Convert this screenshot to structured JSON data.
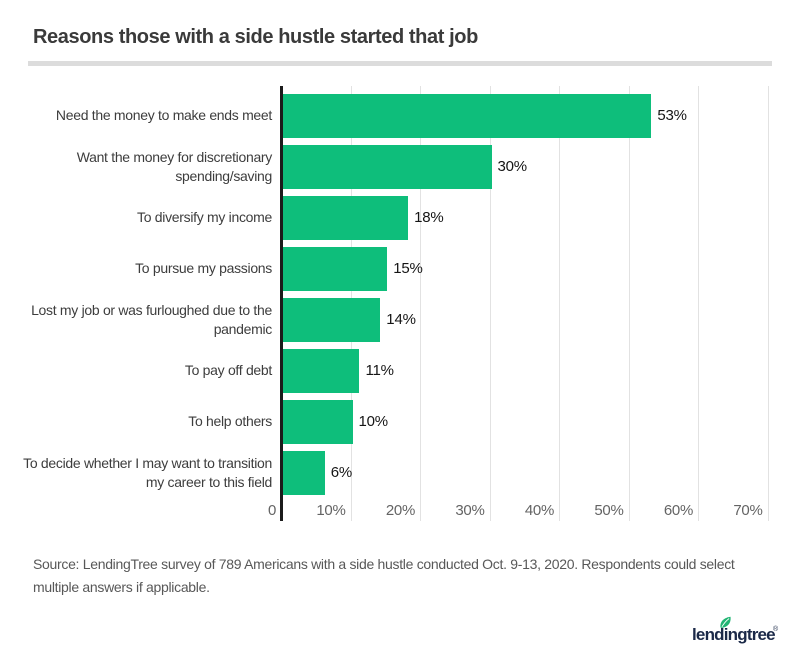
{
  "title": "Reasons those with a side hustle started that job",
  "chart_data": {
    "type": "bar",
    "orientation": "horizontal",
    "title": "Reasons those with a side hustle started that job",
    "categories": [
      "Need the money to make ends meet",
      "Want the money for discretionary spending/saving",
      "To diversify my income",
      "To pursue my passions",
      "Lost my job or was furloughed due to the pandemic",
      "To pay off debt",
      "To help others",
      "To decide whether I may want to transition my career to this field"
    ],
    "values": [
      53,
      30,
      18,
      15,
      14,
      11,
      10,
      6
    ],
    "value_labels": [
      "53%",
      "30%",
      "18%",
      "15%",
      "14%",
      "11%",
      "10%",
      "6%"
    ],
    "xlabel": "",
    "ylabel": "",
    "xlim": [
      0,
      70
    ],
    "x_tick_values": [
      0,
      10,
      20,
      30,
      40,
      50,
      60,
      70
    ],
    "x_tick_labels": [
      "0",
      "10%",
      "20%",
      "30%",
      "40%",
      "50%",
      "60%",
      "70%"
    ],
    "grid": true,
    "legend": "none",
    "bar_color": "#0ebe7b"
  },
  "source": {
    "text": "Source: LendingTree survey of 789 Americans with a side hustle conducted Oct. 9-13, 2020. Respondents could select multiple answers if applicable."
  },
  "logo": {
    "text": "lendingtree",
    "registered_mark": "®"
  },
  "colors": {
    "bar_green": "#0ebe7b",
    "leaf_green": "#21b573",
    "logo_navy": "#1b2948",
    "title_text": "#3a3a3a",
    "axis_line": "#1b1b1b",
    "gridline": "#e2e2e2",
    "divider": "#dcdcdc",
    "tick_text": "#646464",
    "source_text": "#585858"
  }
}
